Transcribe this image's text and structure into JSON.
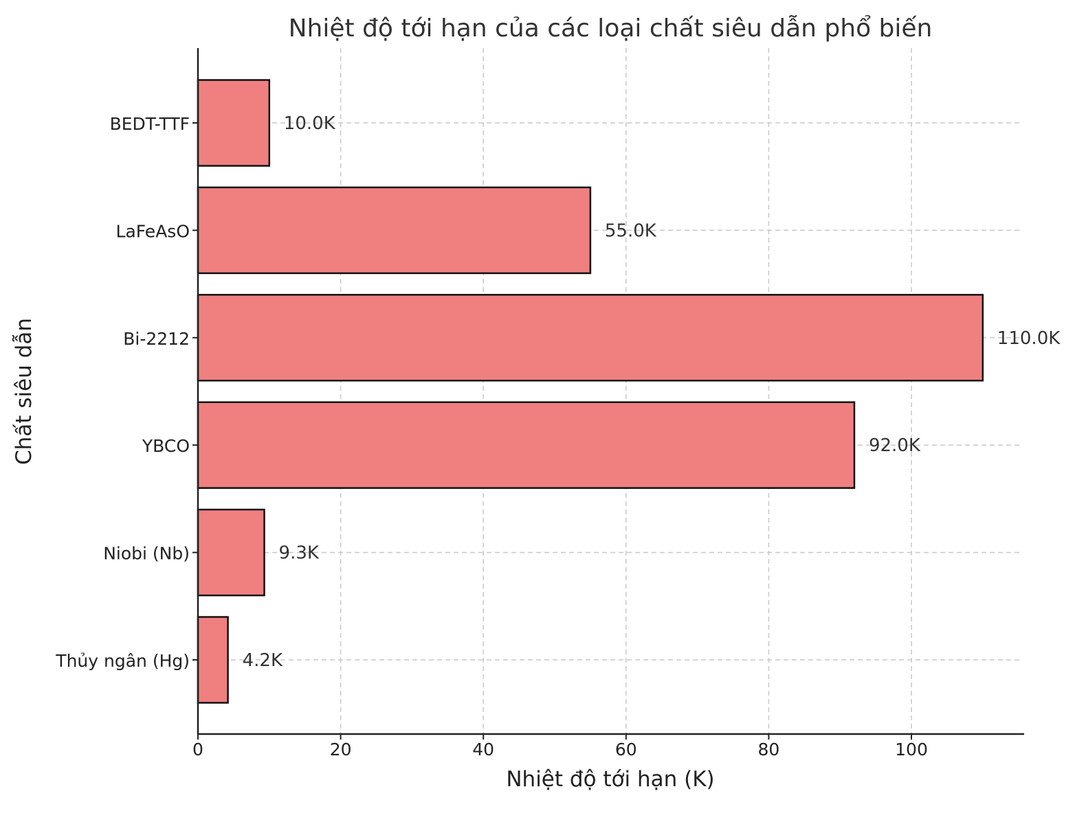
{
  "chart_data": {
    "type": "bar",
    "orientation": "horizontal",
    "title": "Nhiệt độ tới hạn của các loại chất siêu dẫn phổ biến",
    "xlabel": "Nhiệt độ tới hạn (K)",
    "ylabel": "Chất siêu dẫn",
    "categories": [
      "Thủy ngân (Hg)",
      "Niobi (Nb)",
      "YBCO",
      "Bi-2212",
      "LaFeAsO",
      "BEDT-TTF"
    ],
    "values": [
      4.2,
      9.3,
      92.0,
      110.0,
      55.0,
      10.0
    ],
    "data_labels": [
      "4.2K",
      "9.3K",
      "92.0K",
      "110.0K",
      "55.0K",
      "10.0K"
    ],
    "xlim": [
      0,
      115.5
    ],
    "xticks": [
      0,
      20,
      40,
      60,
      80,
      100
    ],
    "grid": true,
    "grid_style": "dashed",
    "legend": null,
    "colors": {
      "bar_fill": "#f08080",
      "bar_edge": "#111111",
      "grid": "#c8c8c8",
      "text": "#333333"
    }
  }
}
